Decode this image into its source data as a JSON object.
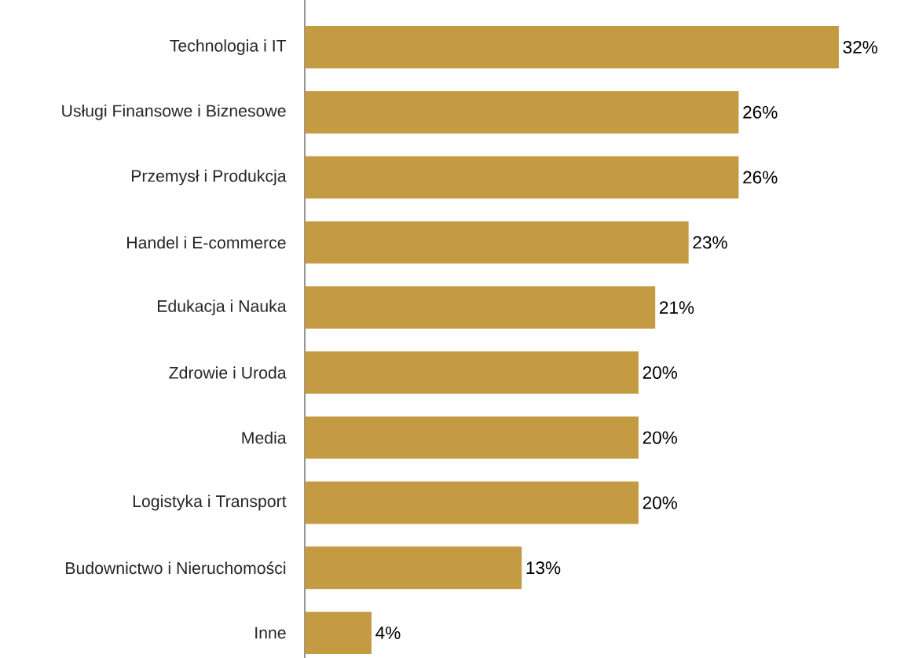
{
  "chart_data": {
    "type": "bar",
    "orientation": "horizontal",
    "categories": [
      "Technologia i IT",
      "Usługi Finansowe i Biznesowe",
      "Przemysł i Produkcja",
      "Handel i E-commerce",
      "Edukacja i Nauka",
      "Zdrowie i Uroda",
      "Media",
      "Logistyka i Transport",
      "Budownictwo i Nieruchomości",
      "Inne"
    ],
    "values": [
      32,
      26,
      26,
      23,
      21,
      20,
      20,
      20,
      13,
      4
    ],
    "value_labels": [
      "32%",
      "26%",
      "26%",
      "23%",
      "21%",
      "20%",
      "20%",
      "20%",
      "13%",
      "4%"
    ],
    "color": "#c49b43"
  }
}
